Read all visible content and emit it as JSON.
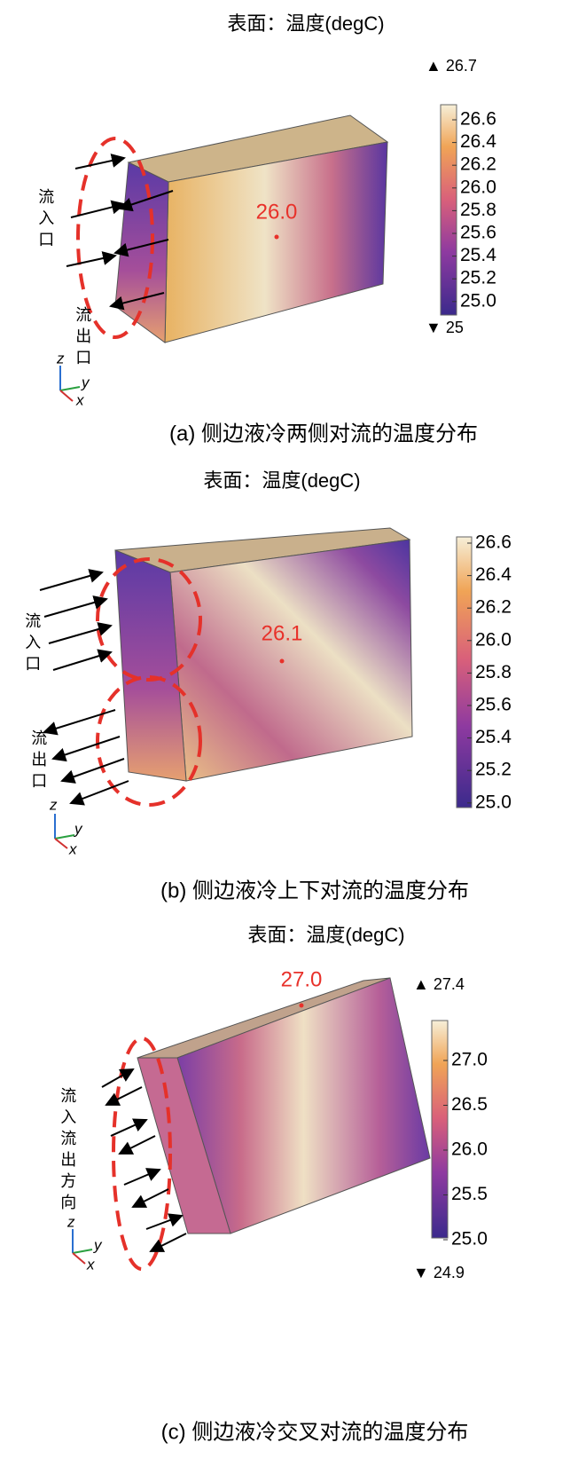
{
  "panels": [
    {
      "title": "表面：温度(degC)",
      "max_label": "▲ 26.7",
      "min_label": "▼ 25",
      "colorbar_ticks": [
        "26.6",
        "26.4",
        "26.2",
        "26.0",
        "25.8",
        "25.6",
        "25.4",
        "25.2",
        "25.0"
      ],
      "center_value": "26.0",
      "inlet": "流入口",
      "outlet": "流出口",
      "axes": [
        "z",
        "y",
        "x"
      ],
      "caption": "(a) 侧边液冷两侧对流的温度分布"
    },
    {
      "title": "表面：温度(degC)",
      "colorbar_ticks": [
        "26.6",
        "26.4",
        "26.2",
        "26.0",
        "25.8",
        "25.6",
        "25.4",
        "25.2",
        "25.0"
      ],
      "center_value": "26.1",
      "inlet": "流入口",
      "outlet": "流出口",
      "axes": [
        "z",
        "y",
        "x"
      ],
      "caption": "(b) 侧边液冷上下对流的温度分布"
    },
    {
      "title": "表面：温度(degC)",
      "max_label": "▲ 27.4",
      "min_label": "▼ 24.9",
      "colorbar_ticks": [
        "27.0",
        "26.5",
        "26.0",
        "25.5",
        "25.0"
      ],
      "center_value": "27.0",
      "flow": "流入流出方向",
      "axes": [
        "z",
        "y",
        "x"
      ],
      "caption": "(c) 侧边液冷交叉对流的温度分布"
    }
  ]
}
